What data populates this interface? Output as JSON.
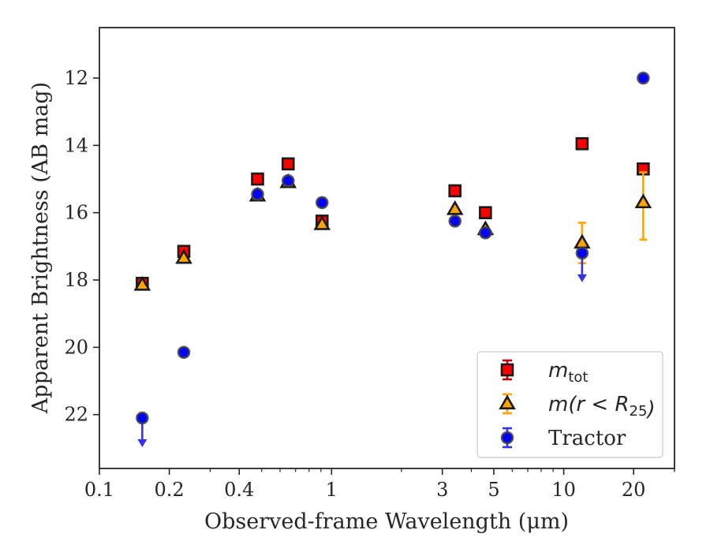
{
  "chart_data": {
    "type": "scatter",
    "title": "",
    "xlabel": "Observed-frame Wavelength (μm)",
    "ylabel": "Apparent Brightness (AB mag)",
    "xscale": "log",
    "yscale": "linear",
    "y_inverted": true,
    "xlim": [
      0.1,
      30
    ],
    "ylim": [
      23.6,
      10.5
    ],
    "xticks": [
      {
        "value": 0.1,
        "label": "0.1"
      },
      {
        "value": 0.2,
        "label": "0.2"
      },
      {
        "value": 0.4,
        "label": "0.4"
      },
      {
        "value": 1,
        "label": "1"
      },
      {
        "value": 3,
        "label": "3"
      },
      {
        "value": 5,
        "label": "5"
      },
      {
        "value": 10,
        "label": "10"
      },
      {
        "value": 20,
        "label": "20"
      }
    ],
    "yticks": [
      {
        "value": 12,
        "label": "12"
      },
      {
        "value": 14,
        "label": "14"
      },
      {
        "value": 16,
        "label": "16"
      },
      {
        "value": 18,
        "label": "18"
      },
      {
        "value": 20,
        "label": "20"
      },
      {
        "value": 22,
        "label": "22"
      }
    ],
    "grid": false,
    "legend_position": "lower-right",
    "series": [
      {
        "name": "m_tot",
        "legend_parts": [
          {
            "text": "m",
            "sub": "tot"
          }
        ],
        "marker": "square",
        "color": "#ff0000",
        "edge_color": "#1a1a1a",
        "errbar_color": "#cc0000",
        "points": [
          {
            "x": 0.153,
            "y": 18.1
          },
          {
            "x": 0.231,
            "y": 17.15
          },
          {
            "x": 0.48,
            "y": 15.0
          },
          {
            "x": 0.65,
            "y": 14.55
          },
          {
            "x": 0.91,
            "y": 16.25
          },
          {
            "x": 3.4,
            "y": 15.35
          },
          {
            "x": 4.6,
            "y": 16.0
          },
          {
            "x": 12.0,
            "y": 13.95
          },
          {
            "x": 22.0,
            "y": 14.7
          }
        ]
      },
      {
        "name": "m(r < R25)",
        "legend_parts": [
          {
            "text": "m(r < R",
            "sub": "25"
          },
          {
            "text": ")",
            "sub": ""
          }
        ],
        "marker": "triangle",
        "color": "#ffa500",
        "edge_color": "#1a1a1a",
        "errbar_color": "#ffa500",
        "points": [
          {
            "x": 0.153,
            "y": 18.15
          },
          {
            "x": 0.231,
            "y": 17.35
          },
          {
            "x": 0.48,
            "y": 15.5
          },
          {
            "x": 0.65,
            "y": 15.1
          },
          {
            "x": 0.91,
            "y": 16.35
          },
          {
            "x": 3.4,
            "y": 15.9
          },
          {
            "x": 4.6,
            "y": 16.5
          },
          {
            "x": 12.0,
            "y": 16.9,
            "yerr_low": 16.3,
            "yerr_high": 17.5
          },
          {
            "x": 22.0,
            "y": 15.7,
            "yerr_low": 14.8,
            "yerr_high": 16.8
          }
        ]
      },
      {
        "name": "Tractor",
        "legend_parts": [
          {
            "text": "Tractor",
            "sub": ""
          }
        ],
        "marker": "circle",
        "color": "#0000ff",
        "edge_color": "#444444",
        "errbar_color": "#3333ee",
        "points": [
          {
            "x": 0.153,
            "y": 22.1,
            "upper_limit": true
          },
          {
            "x": 0.231,
            "y": 20.15
          },
          {
            "x": 0.48,
            "y": 15.45
          },
          {
            "x": 0.65,
            "y": 15.05
          },
          {
            "x": 0.91,
            "y": 15.7
          },
          {
            "x": 3.4,
            "y": 16.25
          },
          {
            "x": 4.6,
            "y": 16.6
          },
          {
            "x": 12.0,
            "y": 17.2,
            "upper_limit": true
          },
          {
            "x": 22.0,
            "y": 12.0
          }
        ]
      }
    ]
  }
}
